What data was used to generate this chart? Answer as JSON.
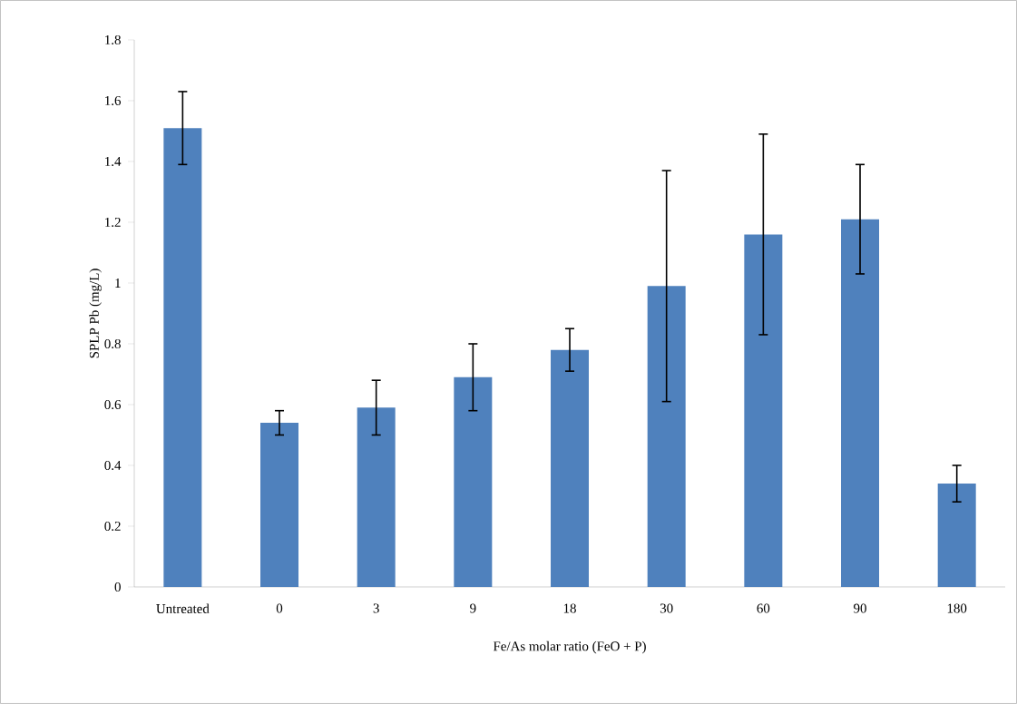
{
  "chart_data": {
    "type": "bar",
    "xlabel": "Fe/As molar ratio (FeO + P)",
    "ylabel": "SPLP Pb (mg/L)",
    "categories": [
      "Untreated",
      "0",
      "3",
      "9",
      "18",
      "30",
      "60",
      "90",
      "180"
    ],
    "values": [
      1.51,
      0.54,
      0.59,
      0.69,
      0.78,
      0.99,
      1.16,
      1.21,
      0.34
    ],
    "errors": [
      [
        1.39,
        1.63
      ],
      [
        0.5,
        0.58
      ],
      [
        0.5,
        0.68
      ],
      [
        0.58,
        0.8
      ],
      [
        0.71,
        0.85
      ],
      [
        0.61,
        1.37
      ],
      [
        0.83,
        1.49
      ],
      [
        1.03,
        1.39
      ],
      [
        0.28,
        0.4
      ]
    ],
    "color": "#4f81bd",
    "ylim": [
      0,
      1.8
    ],
    "yticks": [
      0,
      0.2,
      0.4,
      0.6,
      0.8,
      1,
      1.2,
      1.4,
      1.6,
      1.8
    ]
  }
}
